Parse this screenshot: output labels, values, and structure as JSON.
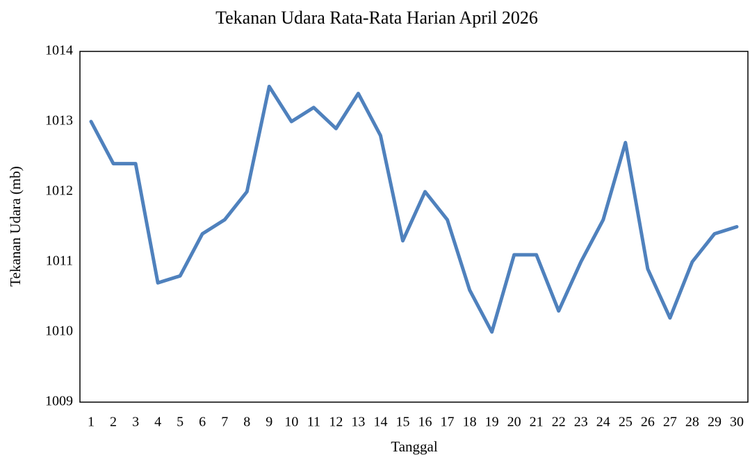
{
  "chart_data": {
    "type": "line",
    "title": "Tekanan Udara Rata-Rata Harian April 2026",
    "x_label": "Tanggal",
    "y_label": "Tekanan Udara (mb)",
    "categories": [
      "1",
      "2",
      "3",
      "4",
      "5",
      "6",
      "7",
      "8",
      "9",
      "10",
      "11",
      "12",
      "13",
      "14",
      "15",
      "16",
      "17",
      "18",
      "19",
      "20",
      "21",
      "22",
      "23",
      "24",
      "25",
      "26",
      "27",
      "28",
      "29",
      "30"
    ],
    "series": [
      {
        "name": "Tekanan Udara",
        "color": "#4f81bd",
        "values": [
          1013.0,
          1012.4,
          1012.4,
          1010.7,
          1010.8,
          1011.4,
          1011.6,
          1012.0,
          1013.5,
          1013.0,
          1013.2,
          1012.9,
          1013.4,
          1012.8,
          1011.3,
          1012.0,
          1011.6,
          1010.6,
          1010.0,
          1011.1,
          1011.1,
          1010.3,
          1011.0,
          1011.6,
          1012.7,
          1010.9,
          1010.2,
          1011.0,
          1011.4,
          1011.5
        ]
      }
    ],
    "ylim": [
      1009,
      1014
    ],
    "yticks": [
      1009,
      1010,
      1011,
      1012,
      1013,
      1014
    ],
    "grid": false,
    "legend": false
  }
}
